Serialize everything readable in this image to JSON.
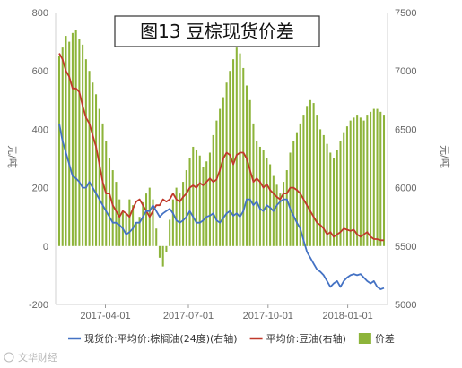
{
  "chart_data": {
    "type": "bar",
    "title": "图13 豆棕现货价差",
    "y_left": {
      "label": "元/吨",
      "ticks": [
        -200,
        0,
        200,
        400,
        600,
        800
      ],
      "range": [
        -200,
        800
      ]
    },
    "y_right": {
      "label": "元/吨",
      "ticks": [
        5000,
        5500,
        6000,
        6500,
        7000,
        7500
      ],
      "range": [
        5000,
        7500
      ]
    },
    "x_ticks": [
      {
        "label": "2017-04-01",
        "pos": 0.15
      },
      {
        "label": "2017-07-01",
        "pos": 0.4
      },
      {
        "label": "2017-10-01",
        "pos": 0.64
      },
      {
        "label": "2018-01-01",
        "pos": 0.88
      }
    ],
    "legend": [
      {
        "label": "现货价:平均价:棕榈油(24度)(右轴)",
        "kind": "line",
        "color": "#4472c4"
      },
      {
        "label": "平均价:豆油(右轴)",
        "kind": "line",
        "color": "#c0392b"
      },
      {
        "label": "价差",
        "kind": "bar",
        "color": "#8db43a"
      }
    ],
    "series": [
      {
        "name": "价差",
        "axis": "left",
        "color": "#8db43a",
        "points": [
          [
            0.0,
            650
          ],
          [
            0.01,
            680
          ],
          [
            0.02,
            720
          ],
          [
            0.03,
            700
          ],
          [
            0.04,
            730
          ],
          [
            0.05,
            740
          ],
          [
            0.06,
            710
          ],
          [
            0.07,
            690
          ],
          [
            0.08,
            640
          ],
          [
            0.09,
            600
          ],
          [
            0.1,
            560
          ],
          [
            0.11,
            520
          ],
          [
            0.12,
            470
          ],
          [
            0.13,
            420
          ],
          [
            0.14,
            360
          ],
          [
            0.15,
            300
          ],
          [
            0.16,
            260
          ],
          [
            0.17,
            220
          ],
          [
            0.18,
            160
          ],
          [
            0.19,
            120
          ],
          [
            0.2,
            110
          ],
          [
            0.21,
            160
          ],
          [
            0.22,
            140
          ],
          [
            0.23,
            80
          ],
          [
            0.24,
            100
          ],
          [
            0.25,
            150
          ],
          [
            0.26,
            180
          ],
          [
            0.27,
            200
          ],
          [
            0.28,
            160
          ],
          [
            0.29,
            60
          ],
          [
            0.3,
            -40
          ],
          [
            0.31,
            -70
          ],
          [
            0.32,
            -20
          ],
          [
            0.33,
            90
          ],
          [
            0.34,
            160
          ],
          [
            0.35,
            200
          ],
          [
            0.36,
            180
          ],
          [
            0.37,
            220
          ],
          [
            0.38,
            260
          ],
          [
            0.39,
            300
          ],
          [
            0.4,
            340
          ],
          [
            0.41,
            330
          ],
          [
            0.42,
            310
          ],
          [
            0.43,
            270
          ],
          [
            0.44,
            290
          ],
          [
            0.45,
            320
          ],
          [
            0.46,
            380
          ],
          [
            0.47,
            430
          ],
          [
            0.48,
            470
          ],
          [
            0.49,
            510
          ],
          [
            0.5,
            560
          ],
          [
            0.51,
            600
          ],
          [
            0.52,
            640
          ],
          [
            0.53,
            680
          ],
          [
            0.54,
            660
          ],
          [
            0.55,
            610
          ],
          [
            0.56,
            550
          ],
          [
            0.57,
            500
          ],
          [
            0.58,
            420
          ],
          [
            0.59,
            360
          ],
          [
            0.6,
            340
          ],
          [
            0.61,
            330
          ],
          [
            0.62,
            300
          ],
          [
            0.63,
            280
          ],
          [
            0.64,
            240
          ],
          [
            0.65,
            210
          ],
          [
            0.66,
            180
          ],
          [
            0.67,
            220
          ],
          [
            0.68,
            260
          ],
          [
            0.69,
            320
          ],
          [
            0.7,
            360
          ],
          [
            0.71,
            390
          ],
          [
            0.72,
            420
          ],
          [
            0.73,
            450
          ],
          [
            0.74,
            480
          ],
          [
            0.75,
            500
          ],
          [
            0.76,
            490
          ],
          [
            0.77,
            450
          ],
          [
            0.78,
            400
          ],
          [
            0.79,
            380
          ],
          [
            0.8,
            350
          ],
          [
            0.81,
            320
          ],
          [
            0.82,
            300
          ],
          [
            0.83,
            330
          ],
          [
            0.84,
            360
          ],
          [
            0.85,
            390
          ],
          [
            0.86,
            410
          ],
          [
            0.87,
            430
          ],
          [
            0.88,
            440
          ],
          [
            0.89,
            450
          ],
          [
            0.9,
            440
          ],
          [
            0.91,
            430
          ],
          [
            0.92,
            450
          ],
          [
            0.93,
            460
          ],
          [
            0.94,
            470
          ],
          [
            0.95,
            470
          ],
          [
            0.96,
            460
          ],
          [
            0.97,
            450
          ]
        ]
      },
      {
        "name": "平均价:豆油(右轴)",
        "axis": "right",
        "color": "#c0392b",
        "points": [
          [
            0.0,
            7150
          ],
          [
            0.01,
            7100
          ],
          [
            0.02,
            7000
          ],
          [
            0.03,
            6950
          ],
          [
            0.04,
            6850
          ],
          [
            0.05,
            6850
          ],
          [
            0.06,
            6820
          ],
          [
            0.07,
            6700
          ],
          [
            0.08,
            6600
          ],
          [
            0.09,
            6550
          ],
          [
            0.1,
            6450
          ],
          [
            0.11,
            6350
          ],
          [
            0.12,
            6200
          ],
          [
            0.13,
            6050
          ],
          [
            0.14,
            5950
          ],
          [
            0.15,
            5950
          ],
          [
            0.16,
            5850
          ],
          [
            0.17,
            5800
          ],
          [
            0.18,
            5750
          ],
          [
            0.19,
            5800
          ],
          [
            0.2,
            5780
          ],
          [
            0.21,
            5750
          ],
          [
            0.22,
            5820
          ],
          [
            0.23,
            5880
          ],
          [
            0.24,
            5900
          ],
          [
            0.25,
            5850
          ],
          [
            0.26,
            5800
          ],
          [
            0.27,
            5750
          ],
          [
            0.28,
            5800
          ],
          [
            0.29,
            5850
          ],
          [
            0.3,
            5850
          ],
          [
            0.31,
            5900
          ],
          [
            0.32,
            5880
          ],
          [
            0.33,
            5900
          ],
          [
            0.34,
            5950
          ],
          [
            0.35,
            5900
          ],
          [
            0.36,
            5880
          ],
          [
            0.37,
            5920
          ],
          [
            0.38,
            5950
          ],
          [
            0.39,
            6000
          ],
          [
            0.4,
            6020
          ],
          [
            0.41,
            6000
          ],
          [
            0.42,
            6040
          ],
          [
            0.43,
            6020
          ],
          [
            0.44,
            6050
          ],
          [
            0.45,
            6080
          ],
          [
            0.46,
            6050
          ],
          [
            0.47,
            6070
          ],
          [
            0.48,
            6150
          ],
          [
            0.49,
            6250
          ],
          [
            0.5,
            6300
          ],
          [
            0.51,
            6280
          ],
          [
            0.52,
            6200
          ],
          [
            0.53,
            6280
          ],
          [
            0.54,
            6300
          ],
          [
            0.55,
            6300
          ],
          [
            0.56,
            6250
          ],
          [
            0.57,
            6150
          ],
          [
            0.58,
            6050
          ],
          [
            0.59,
            6080
          ],
          [
            0.6,
            6050
          ],
          [
            0.61,
            6000
          ],
          [
            0.62,
            6030
          ],
          [
            0.63,
            5980
          ],
          [
            0.64,
            5950
          ],
          [
            0.65,
            5920
          ],
          [
            0.66,
            5900
          ],
          [
            0.67,
            5950
          ],
          [
            0.68,
            5950
          ],
          [
            0.69,
            6000
          ],
          [
            0.7,
            6000
          ],
          [
            0.71,
            5980
          ],
          [
            0.72,
            5950
          ],
          [
            0.73,
            5900
          ],
          [
            0.74,
            5850
          ],
          [
            0.75,
            5800
          ],
          [
            0.76,
            5750
          ],
          [
            0.77,
            5700
          ],
          [
            0.78,
            5680
          ],
          [
            0.79,
            5650
          ],
          [
            0.8,
            5600
          ],
          [
            0.81,
            5620
          ],
          [
            0.82,
            5580
          ],
          [
            0.83,
            5600
          ],
          [
            0.84,
            5620
          ],
          [
            0.85,
            5650
          ],
          [
            0.86,
            5640
          ],
          [
            0.87,
            5630
          ],
          [
            0.88,
            5640
          ],
          [
            0.89,
            5600
          ],
          [
            0.9,
            5580
          ],
          [
            0.91,
            5600
          ],
          [
            0.92,
            5620
          ],
          [
            0.93,
            5580
          ],
          [
            0.94,
            5560
          ],
          [
            0.95,
            5560
          ],
          [
            0.96,
            5550
          ],
          [
            0.97,
            5550
          ]
        ]
      },
      {
        "name": "现货价:平均价:棕榈油(24度)(右轴)",
        "axis": "right",
        "color": "#4472c4",
        "points": [
          [
            0.0,
            6550
          ],
          [
            0.01,
            6400
          ],
          [
            0.02,
            6300
          ],
          [
            0.03,
            6200
          ],
          [
            0.04,
            6100
          ],
          [
            0.05,
            6080
          ],
          [
            0.06,
            6050
          ],
          [
            0.07,
            6000
          ],
          [
            0.08,
            6000
          ],
          [
            0.09,
            6050
          ],
          [
            0.1,
            6000
          ],
          [
            0.11,
            5950
          ],
          [
            0.12,
            5900
          ],
          [
            0.13,
            5850
          ],
          [
            0.14,
            5800
          ],
          [
            0.15,
            5750
          ],
          [
            0.16,
            5700
          ],
          [
            0.17,
            5700
          ],
          [
            0.18,
            5680
          ],
          [
            0.19,
            5650
          ],
          [
            0.2,
            5600
          ],
          [
            0.21,
            5620
          ],
          [
            0.22,
            5650
          ],
          [
            0.23,
            5700
          ],
          [
            0.24,
            5700
          ],
          [
            0.25,
            5750
          ],
          [
            0.26,
            5800
          ],
          [
            0.27,
            5800
          ],
          [
            0.28,
            5850
          ],
          [
            0.29,
            5800
          ],
          [
            0.3,
            5750
          ],
          [
            0.31,
            5780
          ],
          [
            0.32,
            5800
          ],
          [
            0.33,
            5820
          ],
          [
            0.34,
            5780
          ],
          [
            0.35,
            5720
          ],
          [
            0.36,
            5700
          ],
          [
            0.37,
            5720
          ],
          [
            0.38,
            5750
          ],
          [
            0.39,
            5800
          ],
          [
            0.4,
            5750
          ],
          [
            0.41,
            5700
          ],
          [
            0.42,
            5700
          ],
          [
            0.43,
            5720
          ],
          [
            0.44,
            5750
          ],
          [
            0.45,
            5760
          ],
          [
            0.46,
            5780
          ],
          [
            0.47,
            5720
          ],
          [
            0.48,
            5700
          ],
          [
            0.49,
            5740
          ],
          [
            0.5,
            5780
          ],
          [
            0.51,
            5800
          ],
          [
            0.52,
            5760
          ],
          [
            0.53,
            5780
          ],
          [
            0.54,
            5750
          ],
          [
            0.55,
            5800
          ],
          [
            0.56,
            5900
          ],
          [
            0.57,
            5900
          ],
          [
            0.58,
            5850
          ],
          [
            0.59,
            5880
          ],
          [
            0.6,
            5820
          ],
          [
            0.61,
            5800
          ],
          [
            0.62,
            5850
          ],
          [
            0.63,
            5830
          ],
          [
            0.64,
            5800
          ],
          [
            0.65,
            5850
          ],
          [
            0.66,
            5880
          ],
          [
            0.67,
            5900
          ],
          [
            0.68,
            5900
          ],
          [
            0.69,
            5820
          ],
          [
            0.7,
            5760
          ],
          [
            0.71,
            5700
          ],
          [
            0.72,
            5650
          ],
          [
            0.73,
            5550
          ],
          [
            0.74,
            5450
          ],
          [
            0.75,
            5400
          ],
          [
            0.76,
            5350
          ],
          [
            0.77,
            5300
          ],
          [
            0.78,
            5280
          ],
          [
            0.79,
            5250
          ],
          [
            0.8,
            5200
          ],
          [
            0.81,
            5150
          ],
          [
            0.82,
            5180
          ],
          [
            0.83,
            5200
          ],
          [
            0.84,
            5150
          ],
          [
            0.85,
            5200
          ],
          [
            0.86,
            5230
          ],
          [
            0.87,
            5250
          ],
          [
            0.88,
            5260
          ],
          [
            0.89,
            5250
          ],
          [
            0.9,
            5260
          ],
          [
            0.91,
            5230
          ],
          [
            0.92,
            5200
          ],
          [
            0.93,
            5180
          ],
          [
            0.94,
            5200
          ],
          [
            0.95,
            5150
          ],
          [
            0.96,
            5130
          ],
          [
            0.97,
            5140
          ]
        ]
      }
    ],
    "grid": false
  },
  "watermark": {
    "text": "文华财经"
  }
}
